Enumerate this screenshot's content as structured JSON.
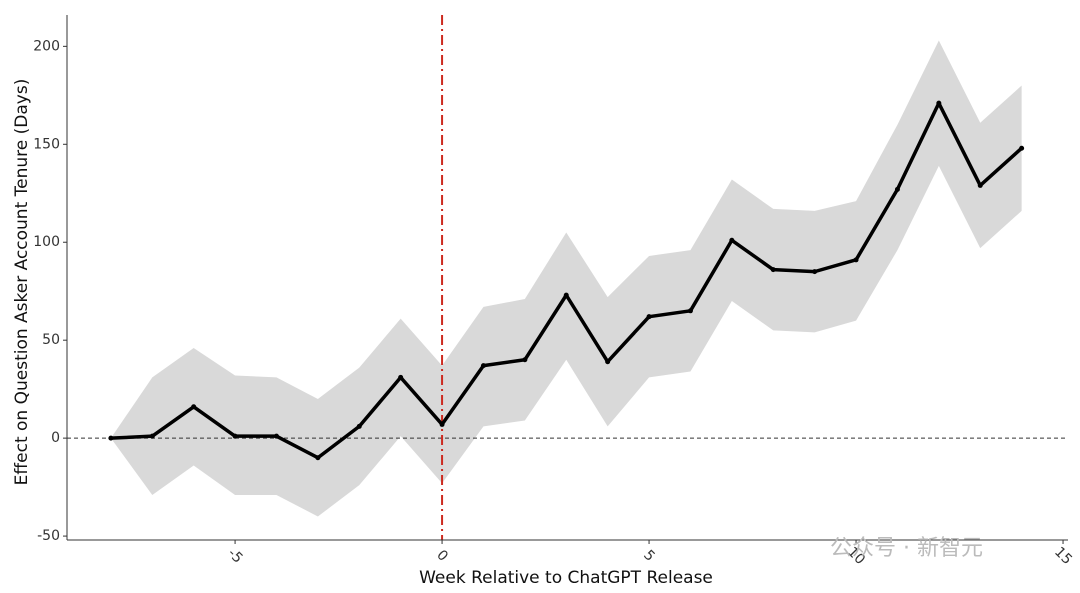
{
  "chart_data": {
    "type": "line",
    "x_label": "Week Relative to ChatGPT Release",
    "y_label": "Effect on Question Asker Account Tenure (Days)",
    "watermark": "公众号 · 新智元",
    "x": [
      -8,
      -7,
      -6,
      -5,
      -4,
      -3,
      -2,
      -1,
      0,
      1,
      2,
      3,
      4,
      5,
      6,
      7,
      8,
      9,
      10,
      11,
      12,
      13,
      14
    ],
    "values": [
      0,
      1,
      16,
      1,
      1,
      -10,
      6,
      31,
      7,
      37,
      40,
      73,
      39,
      62,
      65,
      101,
      86,
      85,
      91,
      127,
      171,
      129,
      148
    ],
    "ci_upper": [
      0,
      31,
      46,
      32,
      31,
      20,
      36,
      61,
      37,
      67,
      71,
      105,
      72,
      93,
      96,
      132,
      117,
      116,
      121,
      160,
      203,
      161,
      180
    ],
    "ci_lower": [
      0,
      -29,
      -14,
      -29,
      -29,
      -40,
      -24,
      1,
      -23,
      6,
      9,
      40,
      6,
      31,
      34,
      70,
      55,
      54,
      60,
      96,
      139,
      97,
      116
    ],
    "color": "#000000",
    "band_color": "#d9d9d9",
    "vline": 0,
    "vline_color": "#cc2a1f",
    "hline": 0,
    "xlim": [
      -9.06,
      15.12
    ],
    "ylim": [
      -52,
      216
    ],
    "xticks": [
      -5,
      0,
      5,
      10,
      15
    ],
    "yticks": [
      -50,
      0,
      50,
      100,
      150,
      200
    ]
  }
}
